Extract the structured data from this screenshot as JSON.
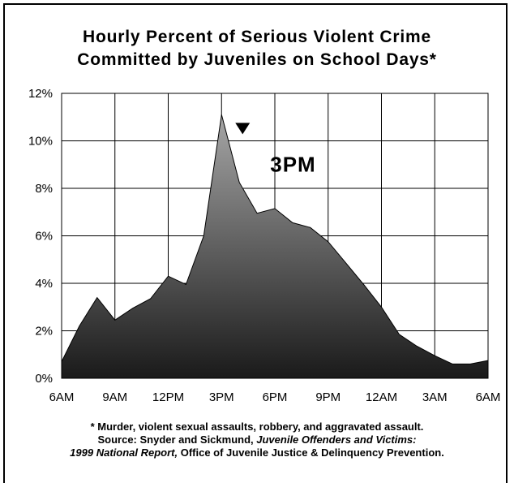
{
  "chart_data": {
    "type": "area",
    "title": [
      "Hourly Percent of Serious Violent Crime",
      "Committed by Juveniles on School Days*"
    ],
    "xlabel": "",
    "ylabel": "",
    "x_tick_labels": [
      "6AM",
      "9AM",
      "12PM",
      "3PM",
      "6PM",
      "9PM",
      "12AM",
      "3AM",
      "6AM"
    ],
    "y_tick_labels": [
      "0%",
      "2%",
      "4%",
      "6%",
      "8%",
      "10%",
      "12%"
    ],
    "ylim": [
      0,
      12
    ],
    "x_hours": [
      0,
      1,
      2,
      3,
      4,
      5,
      6,
      7,
      8,
      9,
      10,
      11,
      12,
      13,
      14,
      15,
      16,
      17,
      18,
      19,
      20,
      21,
      22,
      23,
      24
    ],
    "values": [
      0.7,
      2.2,
      3.4,
      2.45,
      2.95,
      3.35,
      4.3,
      3.95,
      6.0,
      11.1,
      8.25,
      6.95,
      7.15,
      6.55,
      6.35,
      5.75,
      4.85,
      3.95,
      3.0,
      1.85,
      1.35,
      0.95,
      0.6,
      0.6,
      0.75
    ],
    "grid": true,
    "annotation": {
      "text": "3PM",
      "marker": "arrow pointing to 3PM peak"
    }
  },
  "footnotes": {
    "line1": "* Murder, violent sexual assaults, robbery, and aggravated assault.",
    "line2_prefix": "Source: Snyder and Sickmund, ",
    "line2_italic": "Juvenile Offenders and Victims:",
    "line3_italic": "1999 National Report,",
    "line3_suffix": " Office of Juvenile Justice & Delinquency Prevention."
  }
}
